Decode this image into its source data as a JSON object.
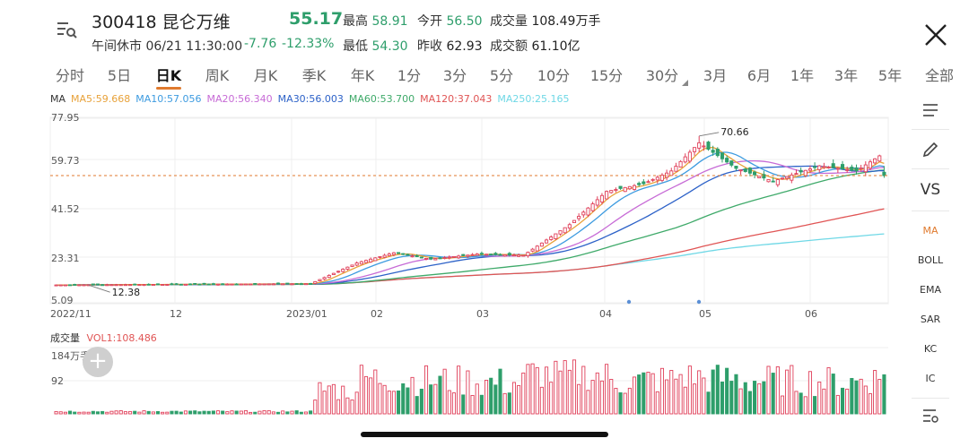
{
  "header": {
    "code_name": "300418 昆仑万维",
    "price": "55.17",
    "status": "午间休市 06/21 11:30:00",
    "change": "-7.76",
    "change_pct": "-12.33%",
    "stats": {
      "high_label": "最高",
      "high": "58.91",
      "open_label": "今开",
      "open": "56.50",
      "vol_label": "成交量",
      "vol": "108.49万手",
      "low_label": "最低",
      "low": "54.30",
      "prev_label": "昨收",
      "prev": "62.93",
      "amount_label": "成交额",
      "amount": "61.10亿"
    }
  },
  "tabs": [
    {
      "label": "分时"
    },
    {
      "label": "5日"
    },
    {
      "label": "日K",
      "active": true
    },
    {
      "label": "周K"
    },
    {
      "label": "月K"
    },
    {
      "label": "季K"
    },
    {
      "label": "年K"
    },
    {
      "label": "1分"
    },
    {
      "label": "3分"
    },
    {
      "label": "5分"
    },
    {
      "label": "10分"
    },
    {
      "label": "15分"
    },
    {
      "label": "30分"
    },
    {
      "label": "3月"
    },
    {
      "label": "6月"
    },
    {
      "label": "1年"
    },
    {
      "label": "3年"
    },
    {
      "label": "5年"
    },
    {
      "label": "全部"
    }
  ],
  "ma_legend": {
    "label": "MA",
    "items": [
      {
        "text": "MA5:59.668",
        "color": "#e8a23a"
      },
      {
        "text": "MA10:57.056",
        "color": "#3d9be0"
      },
      {
        "text": "MA20:56.340",
        "color": "#c76bd6"
      },
      {
        "text": "MA30:56.003",
        "color": "#2d62c8"
      },
      {
        "text": "MA60:53.700",
        "color": "#3faa6a"
      },
      {
        "text": "MA120:37.043",
        "color": "#e05454"
      },
      {
        "text": "MA250:25.165",
        "color": "#6fd8e6"
      }
    ]
  },
  "vol_legend": {
    "label": "成交量",
    "value": "VOL1:108.486"
  },
  "side_menu": {
    "vs_label": "VS",
    "indicators": [
      "MA",
      "BOLL",
      "EMA",
      "SAR",
      "KC",
      "IC"
    ]
  },
  "colors": {
    "up": "#e0405a",
    "down": "#2e9e6b",
    "dash": "#e07a2e"
  },
  "chart_data": {
    "type": "candlestick",
    "y_tick_labels": [
      "77.95",
      "59.73",
      "41.52",
      "23.31",
      "5.09"
    ],
    "ylim": [
      5.09,
      77.95
    ],
    "x_tick_labels": [
      "2022/11",
      "12",
      "2023/01",
      "02",
      "03",
      "04",
      "05",
      "06"
    ],
    "annotations": {
      "max": "70.66",
      "min": "12.38"
    },
    "current_price": 55.17,
    "volume": {
      "y_tick_labels": [
        "184万手",
        "92"
      ],
      "ylim": [
        0,
        184
      ]
    },
    "segments": [
      {
        "count": 56,
        "start": 12.4,
        "end": 12.9
      },
      {
        "count": 10,
        "start": 12.9,
        "end": 21.0
      },
      {
        "count": 8,
        "start": 21.0,
        "end": 25.0
      },
      {
        "count": 8,
        "start": 25.0,
        "end": 22.5
      },
      {
        "count": 10,
        "start": 22.5,
        "end": 24.5
      },
      {
        "count": 10,
        "start": 24.5,
        "end": 24.0
      },
      {
        "count": 10,
        "start": 24.0,
        "end": 36.0
      },
      {
        "count": 8,
        "start": 36.0,
        "end": 49.0
      },
      {
        "count": 8,
        "start": 49.0,
        "end": 52.0
      },
      {
        "count": 6,
        "start": 52.0,
        "end": 57.0
      },
      {
        "count": 6,
        "start": 57.0,
        "end": 68.0
      },
      {
        "count": 8,
        "start": 68.0,
        "end": 58.0
      },
      {
        "count": 8,
        "start": 58.0,
        "end": 53.0
      },
      {
        "count": 10,
        "start": 53.0,
        "end": 59.0
      },
      {
        "count": 8,
        "start": 59.0,
        "end": 57.0
      },
      {
        "count": 5,
        "start": 57.0,
        "end": 62.9
      },
      {
        "count": 1,
        "start": 62.9,
        "end": 55.17
      }
    ]
  }
}
